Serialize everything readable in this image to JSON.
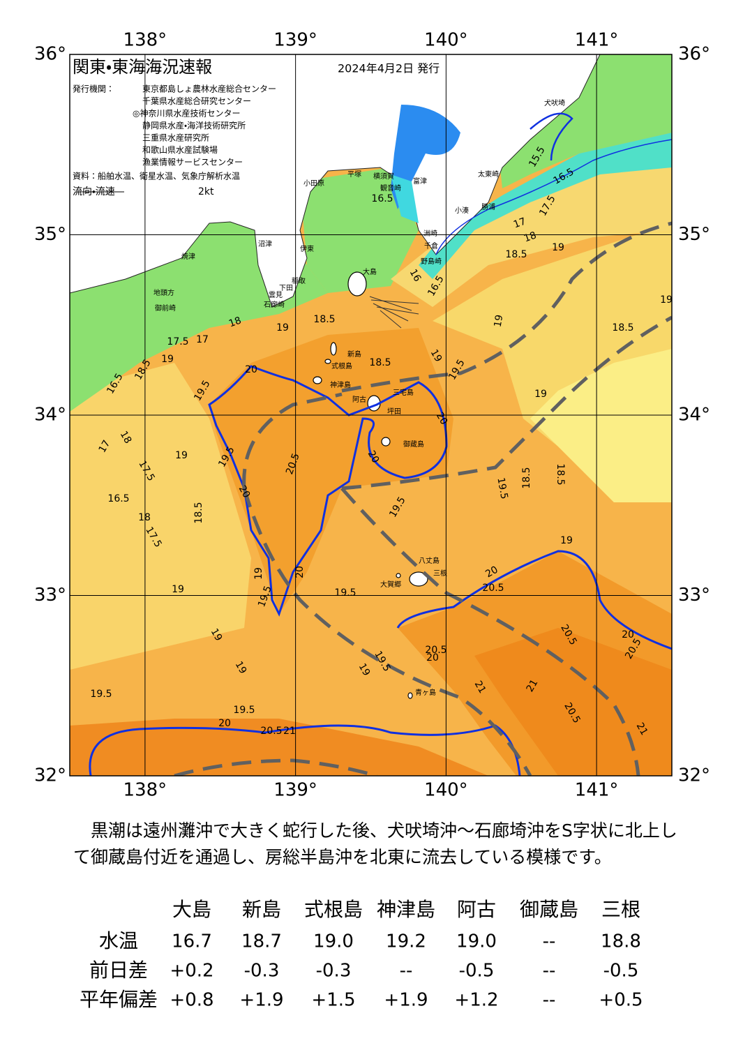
{
  "header": {
    "title": "関東・東海海況速報",
    "date": "2024年4月2日 発行",
    "issuer_label": "発行機関：",
    "issuers": [
      "東京都島しょ農林水産総合センター",
      "千葉県水産総合研究センター",
      "◎神奈川県水産技術センター",
      "静岡県水産・海洋技術研究所",
      "三重県水産研究所",
      "和歌山県水産試験場",
      "漁業情報サービスセンター"
    ],
    "source": "資料：船舶水温、衛星水温、気象庁解析水温",
    "flow_label": "流向・流速",
    "flow_scale": "2kt"
  },
  "map": {
    "lon_range": [
      137.5,
      141.5
    ],
    "lat_range": [
      32,
      36
    ],
    "lon_ticks": [
      {
        "value": 138,
        "label": "138°"
      },
      {
        "value": 139,
        "label": "139°"
      },
      {
        "value": 140,
        "label": "140°"
      },
      {
        "value": 141,
        "label": "141°"
      }
    ],
    "lat_ticks": [
      {
        "value": 32,
        "label": "32°"
      },
      {
        "value": 33,
        "label": "33°"
      },
      {
        "value": 34,
        "label": "34°"
      },
      {
        "value": 35,
        "label": "35°"
      },
      {
        "value": 36,
        "label": "36°"
      }
    ],
    "places": [
      "犬吠埼",
      "太東崎",
      "勝浦",
      "小湊",
      "富津",
      "観音崎",
      "横須賀",
      "平塚",
      "小田原",
      "洲崎",
      "千倉",
      "野島崎",
      "大島",
      "沼津",
      "伊東",
      "稲取",
      "下田",
      "雲見",
      "石廊崎",
      "地頭方",
      "御前崎",
      "焼津",
      "新島",
      "式根島",
      "神津島",
      "三宅島",
      "阿古",
      "坪田",
      "御蔵島",
      "八丈島",
      "三根",
      "大賀郷",
      "青ヶ島"
    ],
    "contour_labels": [
      15.5,
      16.5,
      16.5,
      17.5,
      17,
      18,
      18.5,
      19,
      16,
      16.5,
      18.5,
      19,
      18,
      17.5,
      17,
      19,
      18.5,
      16.5,
      19.5,
      20,
      18.5,
      19,
      19.5,
      19,
      18.5,
      19,
      19,
      20,
      20.5,
      19.5,
      19,
      17,
      18,
      17.5,
      16.5,
      18,
      17.5,
      18.5,
      20,
      19.5,
      18.5,
      18.5,
      19.5,
      19,
      20,
      19.5,
      20,
      19.5,
      19,
      19,
      19,
      19,
      19.5,
      19.5,
      20,
      20.5,
      21,
      20,
      20.5,
      20.5,
      20,
      20.5,
      20.5,
      20,
      19.5,
      19,
      21,
      21,
      20.5,
      21
    ]
  },
  "text": "黒潮は遠州灘沖で大きく蛇行した後、犬吠埼沖～石廊埼沖をS字状に北上して御蔵島付近を通過し、房総半島沖を北東に流去している模様です。",
  "table": {
    "columns": [
      "大島",
      "新島",
      "式根島",
      "神津島",
      "阿古",
      "御蔵島",
      "三根"
    ],
    "rows": [
      {
        "label": "水温",
        "cells": [
          "16.7",
          "18.7",
          "19.0",
          "19.2",
          "19.0",
          "--",
          "18.8"
        ]
      },
      {
        "label": "前日差",
        "cells": [
          "+0.2",
          "-0.3",
          "-0.3",
          "--",
          "-0.5",
          "--",
          "-0.5"
        ]
      },
      {
        "label": "平年偏差",
        "cells": [
          "+0.8",
          "+1.9",
          "+1.5",
          "+1.9",
          "+1.2",
          "--",
          "+0.5"
        ]
      }
    ]
  }
}
